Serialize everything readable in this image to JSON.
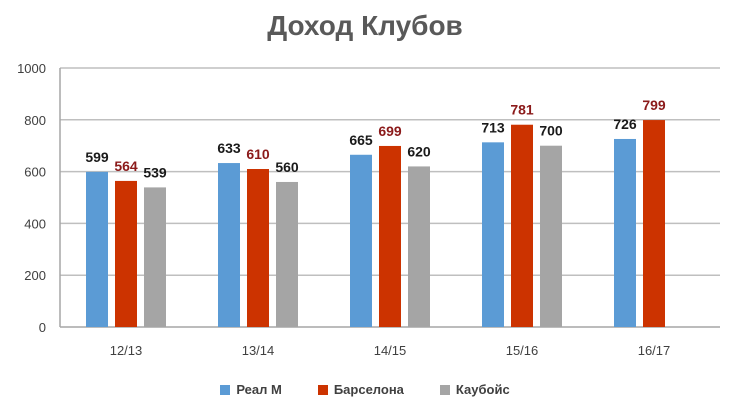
{
  "chart_data": {
    "type": "bar",
    "title": "Доход Клубов",
    "categories": [
      "12/13",
      "13/14",
      "14/15",
      "15/16",
      "16/17"
    ],
    "series": [
      {
        "name": "Реал М",
        "values": [
          599,
          633,
          665,
          713,
          726
        ],
        "color": "#5B9BD5",
        "label_color": "#1A1A1A"
      },
      {
        "name": "Барселона",
        "values": [
          564,
          610,
          699,
          781,
          799
        ],
        "color": "#CC3300",
        "label_color": "#8B1A1A"
      },
      {
        "name": "Каубойс",
        "values": [
          539,
          560,
          620,
          700,
          null
        ],
        "color": "#A5A5A5",
        "label_color": "#1A1A1A"
      }
    ],
    "ylim": [
      0,
      1000
    ],
    "yticks": [
      0,
      200,
      400,
      600,
      800,
      1000
    ],
    "xlabel": "",
    "ylabel": "",
    "grid": true,
    "legend_position": "bottom"
  }
}
